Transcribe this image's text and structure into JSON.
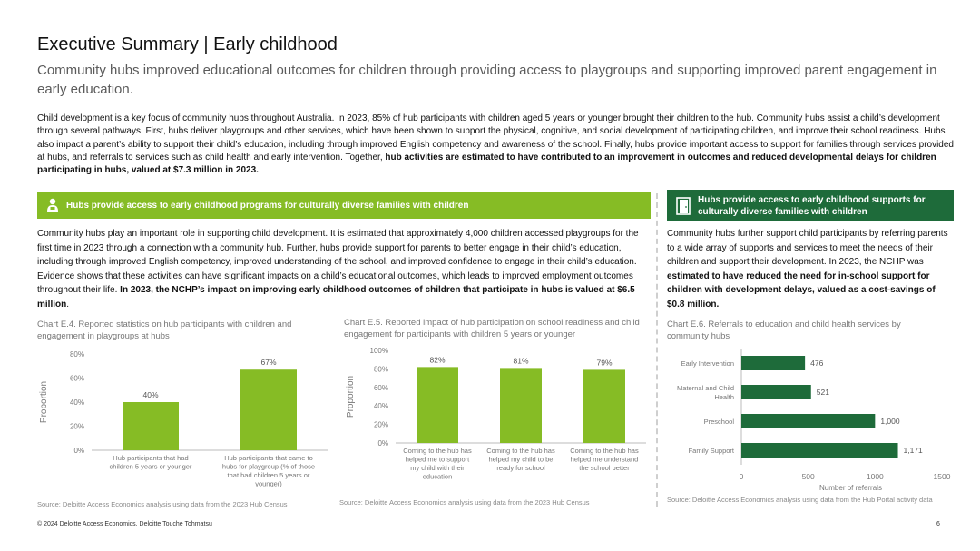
{
  "page": {
    "title": "Executive Summary | Early childhood",
    "subtitle": "Community hubs improved educational outcomes for children through providing access to playgroups and supporting improved parent engagement in early education.",
    "intro_plain": "Child development is a key focus of community hubs throughout Australia. In 2023, 85% of hub participants with children aged 5 years or younger brought their children to the hub. Community hubs assist a child’s development through several pathways. First, hubs deliver playgroups and other services, which have been shown to support the physical, cognitive, and social development of participating children, and improve their school readiness. Hubs also impact a parent’s ability to support their child’s education, including through improved English competency and awareness of the school. Finally, hubs provide important access to support for families through services provided at hubs, and referrals to services such as child health and early intervention. Together, ",
    "intro_bold": "hub activities are estimated to have contributed to an improvement in outcomes and reduced developmental delays for children participating in hubs, valued at $7.3 million in 2023.",
    "footer": "© 2024 Deloitte Access Economics. Deloitte Touche Tohmatsu",
    "page_number": "6"
  },
  "left_section": {
    "header": "Hubs provide access to early childhood programs for culturally diverse families with children",
    "body_plain": "Community hubs play an important role in supporting child development. It is estimated that approximately 4,000 children accessed playgroups for the first time in 2023 through a connection with a community hub. Further, hubs provide support for parents to better engage in their child’s education, including through improved English competency, improved understanding of the school, and improved confidence to engage in their child’s education. Evidence shows that these activities can have significant impacts on a child’s educational outcomes, which leads to improved employment outcomes throughout their life. ",
    "body_bold": "In 2023, the NCHP’s impact on improving early childhood outcomes of children that participate in hubs is valued at $6.5 million",
    "body_end": "."
  },
  "right_section": {
    "header": "Hubs provide access to early childhood supports for culturally diverse families with children",
    "body_plain": "Community hubs further support child participants by referring parents to a wide array of supports and services to meet the needs of their children and support their development. In 2023, the NCHP was ",
    "body_bold": "estimated to have reduced the need for in-school support for children with development delays, valued as a cost-savings of $0.8 million."
  },
  "chart_captions": {
    "e4": "Chart E.4. Reported statistics on hub participants with children and engagement in playgroups at hubs",
    "e5": "Chart E.5. Reported impact of hub participation on school readiness and child engagement for participants with children 5 years or younger",
    "e6": "Chart E.6. Referrals to education and child health services by community hubs"
  },
  "sources": {
    "e4": "Source: Deloitte Access Economics analysis using data from the 2023 Hub Census",
    "e5": "Source: Deloitte Access Economics analysis using data from the 2023 Hub Census",
    "e6": "Source: Deloitte Access Economics analysis using data from the Hub Portal activity data"
  },
  "colors": {
    "green": "#86bc25",
    "dark_green": "#1e6b3a",
    "bar_dark": "#1e6b3a"
  },
  "icons": {
    "left_header": "child-icon",
    "right_header": "door-icon"
  },
  "chart_data": [
    {
      "id": "E.4",
      "type": "bar",
      "categories": [
        "Hub participants that had children 5 years or younger",
        "Hub participants that came to hubs for playgroup (% of those that had children 5 years or younger)"
      ],
      "values": [
        40,
        67
      ],
      "value_labels": [
        "40%",
        "67%"
      ],
      "ylabel": "Proportion",
      "ylim": [
        0,
        80
      ],
      "yticks": [
        0,
        20,
        40,
        60,
        80
      ],
      "ytick_labels": [
        "0%",
        "20%",
        "40%",
        "60%",
        "80%"
      ],
      "grid": false
    },
    {
      "id": "E.5",
      "type": "bar",
      "categories": [
        "Coming to the hub has helped me to support my child with their education",
        "Coming to the hub has helped my child to be ready for school",
        "Coming to the hub has helped me understand the school better"
      ],
      "values": [
        82,
        81,
        79
      ],
      "value_labels": [
        "82%",
        "81%",
        "79%"
      ],
      "ylabel": "Proportion",
      "ylim": [
        0,
        100
      ],
      "yticks": [
        0,
        20,
        40,
        60,
        80,
        100
      ],
      "ytick_labels": [
        "0%",
        "20%",
        "40%",
        "60%",
        "80%",
        "100%"
      ],
      "grid": false
    },
    {
      "id": "E.6",
      "type": "bar",
      "orientation": "horizontal",
      "categories": [
        "Early Intervention",
        "Maternal and Child Health",
        "Preschool",
        "Family Support"
      ],
      "values": [
        476,
        521,
        1000,
        1171
      ],
      "value_labels": [
        "476",
        "521",
        "1,000",
        "1,171"
      ],
      "xlabel": "Number of referrals",
      "xlim": [
        0,
        1500
      ],
      "xticks": [
        0,
        500,
        1000,
        1500
      ],
      "xtick_labels": [
        "0",
        "500",
        "1000",
        "1500"
      ],
      "grid": false
    }
  ]
}
